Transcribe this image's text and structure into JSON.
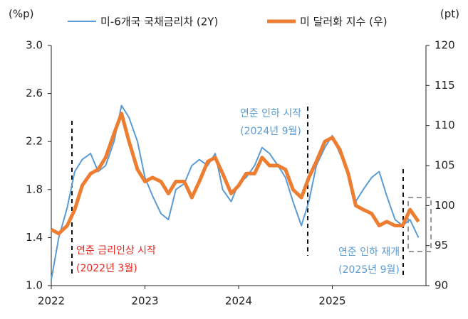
{
  "chart_data": {
    "type": "line",
    "y_label": "(%p)",
    "y2_label": "(pt)",
    "xlim": [
      2022,
      2026
    ],
    "xticks": [
      2022,
      2023,
      2024,
      2025
    ],
    "ylim": [
      1.0,
      3.0
    ],
    "yticks": [
      {
        "value": 1.0,
        "label": "1.0"
      },
      1.4,
      1.8,
      2.2,
      2.6,
      {
        "value": 3.0,
        "label": "3.0"
      }
    ],
    "y2lim": [
      90,
      120
    ],
    "y2ticks": [
      90,
      95,
      100,
      105,
      110,
      115,
      120
    ],
    "legend": "top",
    "annotations": [
      {
        "lines": [
          "연준 금리인상 시작",
          "(2022년 3월)"
        ],
        "color": "#e8251e"
      },
      {
        "lines": [
          "연준 인하 시작",
          "(2024년 9월)"
        ],
        "color": "#5b9bd5"
      },
      {
        "lines": [
          "연준 인하 재개",
          "(2025년 9월)"
        ],
        "color": "#5b9bd5"
      }
    ],
    "x": [
      2022.0,
      2022.08,
      2022.17,
      2022.25,
      2022.33,
      2022.42,
      2022.5,
      2022.58,
      2022.67,
      2022.75,
      2022.83,
      2022.92,
      2023.0,
      2023.08,
      2023.17,
      2023.25,
      2023.33,
      2023.42,
      2023.5,
      2023.58,
      2023.67,
      2023.75,
      2023.83,
      2023.92,
      2024.0,
      2024.08,
      2024.17,
      2024.25,
      2024.33,
      2024.42,
      2024.5,
      2024.58,
      2024.67,
      2024.75,
      2024.83,
      2024.92,
      2025.0,
      2025.08,
      2025.17,
      2025.25,
      2025.33,
      2025.42,
      2025.5,
      2025.58,
      2025.67,
      2025.75,
      2025.83,
      2025.92
    ],
    "series": [
      {
        "name": "미-6개국 국채금리차 (2Y)",
        "color": "#5b9bd5",
        "width": 2,
        "axis": "y",
        "values": [
          1.05,
          1.4,
          1.65,
          1.95,
          2.05,
          2.1,
          1.95,
          2.0,
          2.2,
          2.5,
          2.4,
          2.2,
          1.9,
          1.75,
          1.6,
          1.55,
          1.8,
          1.85,
          2.0,
          2.05,
          2.0,
          2.1,
          1.8,
          1.7,
          1.85,
          1.9,
          2.0,
          2.15,
          2.1,
          2.0,
          1.9,
          1.7,
          1.5,
          1.7,
          2.0,
          2.15,
          2.25,
          2.1,
          1.95,
          1.7,
          1.8,
          1.9,
          1.95,
          1.75,
          1.55,
          1.5,
          1.55,
          1.4
        ]
      },
      {
        "name": "미 달러화 지수 (우)",
        "color": "#ed7d31",
        "width": 5,
        "axis": "y2",
        "values": [
          97,
          96.5,
          97.5,
          99.5,
          102.5,
          104,
          104.5,
          106,
          109,
          111.5,
          108,
          104.5,
          103,
          103.5,
          103,
          101.5,
          103,
          103,
          101,
          103,
          105.5,
          106,
          104,
          101.5,
          102.5,
          104,
          104,
          106,
          105,
          105,
          104.5,
          102,
          101,
          103.5,
          105.5,
          108,
          108.5,
          107,
          104,
          100,
          99.5,
          99,
          97.5,
          98,
          97.5,
          97.5,
          99.5,
          98
        ]
      }
    ]
  }
}
